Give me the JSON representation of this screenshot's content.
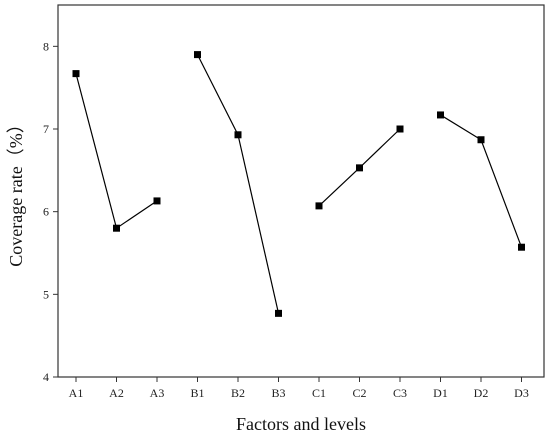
{
  "chart_data": {
    "type": "line",
    "categories": [
      "A1",
      "A2",
      "A3",
      "B1",
      "B2",
      "B3",
      "C1",
      "C2",
      "C3",
      "D1",
      "D2",
      "D3"
    ],
    "groups": [
      {
        "points": [
          "A1",
          "A2",
          "A3"
        ],
        "values": [
          7.67,
          5.8,
          6.13
        ]
      },
      {
        "points": [
          "B1",
          "B2",
          "B3"
        ],
        "values": [
          7.9,
          6.93,
          4.77
        ]
      },
      {
        "points": [
          "C1",
          "C2",
          "C3"
        ],
        "values": [
          6.07,
          6.53,
          7.0
        ]
      },
      {
        "points": [
          "D1",
          "D2",
          "D3"
        ],
        "values": [
          7.17,
          6.87,
          5.57
        ]
      }
    ],
    "xlabel": "Factors and levels",
    "ylabel": "Coverage rate（%）",
    "ylim": [
      4,
      8.5
    ],
    "yticks": [
      4,
      5,
      6,
      7,
      8
    ],
    "grid": false,
    "marker": "square"
  }
}
